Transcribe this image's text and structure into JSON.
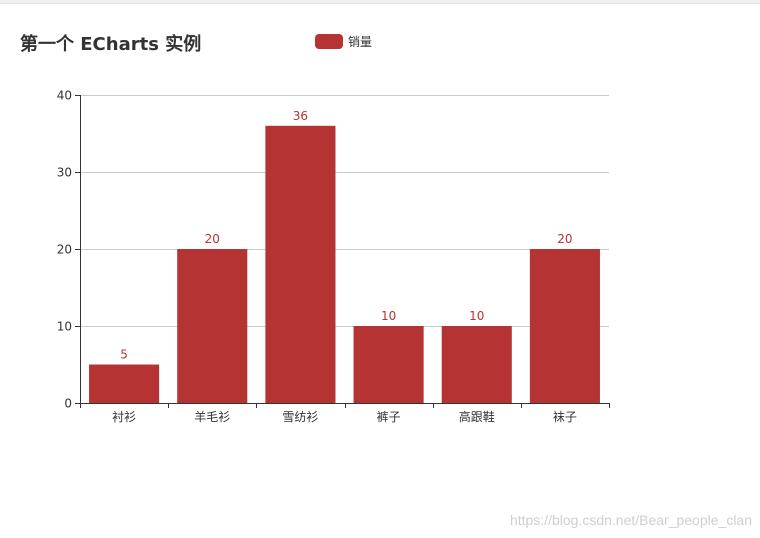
{
  "title": "第一个 ECharts 实例",
  "legend": {
    "label": "销量",
    "position": "top"
  },
  "colors": {
    "bar": "#b53433",
    "axis": "#333333",
    "grid": "#cccccc"
  },
  "watermark": "https://blog.csdn.net/Bear_people_clan",
  "chart_data": {
    "type": "bar",
    "title": "第一个 ECharts 实例",
    "categories": [
      "衬衫",
      "羊毛衫",
      "雪纺衫",
      "裤子",
      "高跟鞋",
      "袜子"
    ],
    "series": [
      {
        "name": "销量",
        "values": [
          5,
          20,
          36,
          10,
          10,
          20
        ]
      }
    ],
    "y_ticks": [
      0,
      10,
      20,
      30,
      40
    ],
    "ylim": [
      0,
      40
    ],
    "grid": true,
    "data_labels": true
  }
}
